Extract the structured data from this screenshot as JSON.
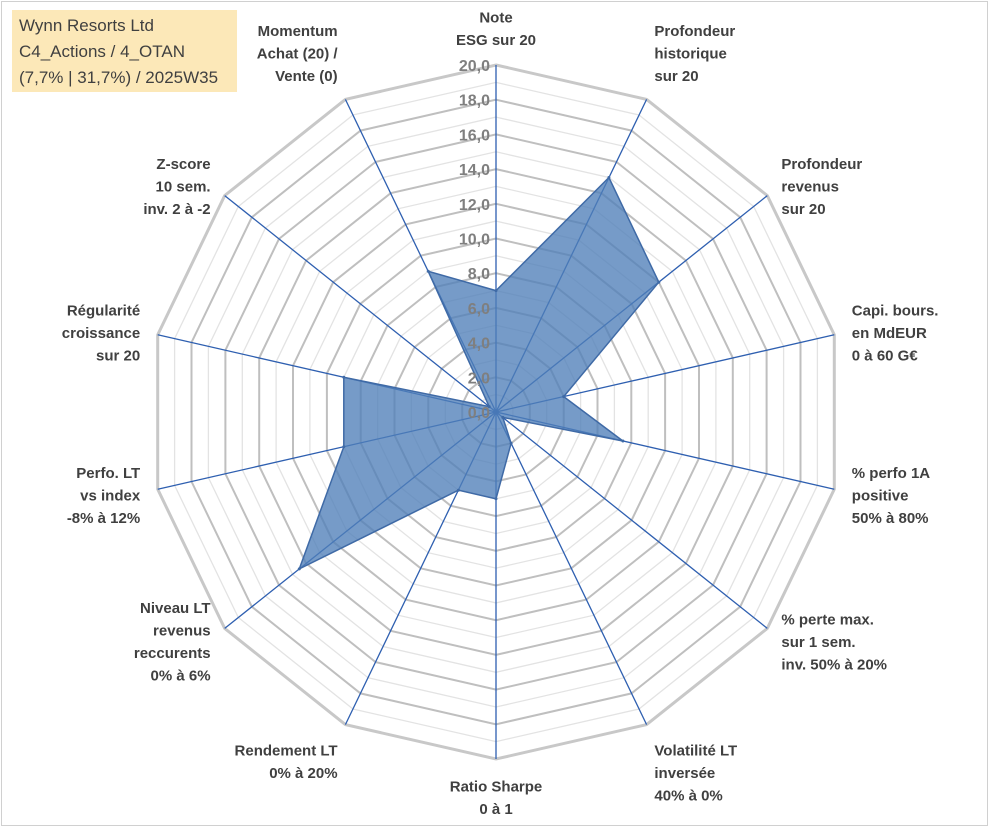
{
  "info_box": {
    "line1": "Wynn Resorts Ltd",
    "line2": "C4_Actions / 4_OTAN",
    "line3": "(7,7% | 31,7%) / 2025W35"
  },
  "chart_data": {
    "type": "radar",
    "title": "",
    "rmin": 0,
    "rmax": 20,
    "tick_step": 2,
    "grid_step": 1,
    "tick_labels": [
      "0,0",
      "2,0",
      "4,0",
      "6,0",
      "8,0",
      "10,0",
      "12,0",
      "14,0",
      "16,0",
      "18,0",
      "20,0"
    ],
    "axes": [
      "Note\nESG sur 20",
      "Profondeur\nhistorique\nsur 20",
      "Profondeur\nrevenus\nsur 20",
      "Capi. bours.\nen MdEUR\n0 à 60 G€",
      "% perfo 1A\npositive\n50% à 80%",
      "% perte max.\nsur 1 sem.\ninv. 50% à 20%",
      "Volatilité LT\ninversée\n40% à 0%",
      "Ratio Sharpe\n0 à 1",
      "Rendement LT\n0% à 20%",
      "Niveau LT\nrevenus\nreccurents\n0% à 6%",
      "Perfo. LT\nvs index\n-8% à 12%",
      "Régularité\ncroissance\nsur 20",
      "Z-score\n10 sem.\ninv. 2 à -2",
      "Momentum\nAchat (20) /\nVente (0)"
    ],
    "series": [
      {
        "values": [
          7.0,
          15.0,
          12.0,
          4.0,
          7.5,
          0.5,
          2.0,
          5.0,
          5.0,
          14.5,
          9.0,
          9.0,
          0.5,
          9.0
        ]
      }
    ],
    "colors": {
      "fill": "#4f7fb8",
      "fill_opacity": 0.78,
      "stroke": "#3f6aa6",
      "spoke": "#2e5fb0",
      "major_ring": "#bfbfbf",
      "minor_ring": "#e3e3e3",
      "outer_ring": "#c8c8c8"
    }
  }
}
